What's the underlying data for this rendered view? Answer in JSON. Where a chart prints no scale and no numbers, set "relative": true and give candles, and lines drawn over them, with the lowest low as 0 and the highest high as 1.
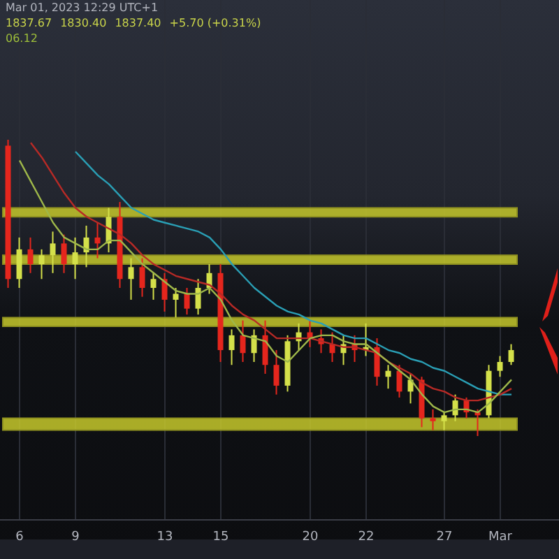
{
  "chart_data": {
    "type": "candlestick",
    "relative": true,
    "grid": "x",
    "categories": [
      null,
      "6",
      null,
      null,
      null,
      null,
      "9",
      null,
      null,
      null,
      null,
      null,
      null,
      null,
      "13",
      null,
      null,
      null,
      null,
      "15",
      null,
      null,
      null,
      null,
      null,
      null,
      null,
      "20",
      null,
      null,
      null,
      null,
      "22",
      null,
      null,
      null,
      null,
      null,
      null,
      "27",
      null,
      null,
      null,
      null,
      "Mar",
      null
    ],
    "ohlc": [
      [
        0.98,
        1.0,
        0.5,
        0.53
      ],
      [
        0.53,
        0.67,
        0.5,
        0.63
      ],
      [
        0.63,
        0.67,
        0.55,
        0.58
      ],
      [
        0.58,
        0.63,
        0.53,
        0.61
      ],
      [
        0.61,
        0.69,
        0.55,
        0.65
      ],
      [
        0.65,
        0.68,
        0.55,
        0.58
      ],
      [
        0.58,
        0.67,
        0.53,
        0.62
      ],
      [
        0.62,
        0.71,
        0.57,
        0.67
      ],
      [
        0.67,
        0.72,
        0.6,
        0.65
      ],
      [
        0.65,
        0.77,
        0.62,
        0.74
      ],
      [
        0.74,
        0.79,
        0.5,
        0.53
      ],
      [
        0.53,
        0.6,
        0.46,
        0.57
      ],
      [
        0.57,
        0.6,
        0.47,
        0.5
      ],
      [
        0.5,
        0.55,
        0.46,
        0.53
      ],
      [
        0.53,
        0.55,
        0.42,
        0.46
      ],
      [
        0.46,
        0.5,
        0.4,
        0.48
      ],
      [
        0.48,
        0.5,
        0.41,
        0.43
      ],
      [
        0.43,
        0.53,
        0.41,
        0.5
      ],
      [
        0.5,
        0.58,
        0.48,
        0.55
      ],
      [
        0.55,
        0.58,
        0.25,
        0.29
      ],
      [
        0.29,
        0.36,
        0.24,
        0.34
      ],
      [
        0.34,
        0.39,
        0.25,
        0.28
      ],
      [
        0.28,
        0.36,
        0.25,
        0.34
      ],
      [
        0.34,
        0.39,
        0.21,
        0.24
      ],
      [
        0.24,
        0.29,
        0.14,
        0.17
      ],
      [
        0.17,
        0.34,
        0.15,
        0.32
      ],
      [
        0.32,
        0.38,
        0.29,
        0.35
      ],
      [
        0.35,
        0.39,
        0.3,
        0.33
      ],
      [
        0.33,
        0.36,
        0.28,
        0.31
      ],
      [
        0.31,
        0.35,
        0.25,
        0.28
      ],
      [
        0.28,
        0.34,
        0.24,
        0.31
      ],
      [
        0.31,
        0.34,
        0.25,
        0.29
      ],
      [
        0.29,
        0.38,
        0.27,
        0.3
      ],
      [
        0.3,
        0.33,
        0.17,
        0.2
      ],
      [
        0.2,
        0.24,
        0.16,
        0.22
      ],
      [
        0.22,
        0.24,
        0.13,
        0.15
      ],
      [
        0.15,
        0.21,
        0.11,
        0.19
      ],
      [
        0.19,
        0.2,
        0.03,
        0.06
      ],
      [
        0.06,
        0.09,
        0.02,
        0.05
      ],
      [
        0.05,
        0.08,
        0.02,
        0.07
      ],
      [
        0.07,
        0.14,
        0.05,
        0.12
      ],
      [
        0.12,
        0.13,
        0.06,
        0.08
      ],
      [
        0.08,
        0.09,
        0,
        0.07
      ],
      [
        0.07,
        0.24,
        0.06,
        0.22
      ],
      [
        0.22,
        0.27,
        0.2,
        0.25
      ],
      [
        0.25,
        0.31,
        0.24,
        0.29
      ]
    ],
    "colors": [
      "#e5261d",
      "#d4e04a",
      "#e5261d",
      "#d4e04a",
      "#d4e04a",
      "#e5261d",
      "#d4e04a",
      "#d4e04a",
      "#e5261d",
      "#d4e04a",
      "#e5261d",
      "#d4e04a",
      "#e5261d",
      "#d4e04a",
      "#e5261d",
      "#d4e04a",
      "#e5261d",
      "#d4e04a",
      "#d4e04a",
      "#e5261d",
      "#d4e04a",
      "#e5261d",
      "#d4e04a",
      "#e5261d",
      "#e5261d",
      "#d4e04a",
      "#d4e04a",
      "#e5261d",
      "#e5261d",
      "#e5261d",
      "#d4e04a",
      "#e5261d",
      "#d4e04a",
      "#e5261d",
      "#d4e04a",
      "#e5261d",
      "#d4e04a",
      "#e5261d",
      "#e5261d",
      "#d4e04a",
      "#d4e04a",
      "#e5261d",
      "#e5261d",
      "#d4e04a",
      "#d4e04a",
      "#d4e04a"
    ],
    "series": [
      {
        "type": "line",
        "color": "#2a9fb5",
        "values": [
          null,
          null,
          null,
          null,
          null,
          null,
          0.96,
          0.92,
          0.88,
          0.85,
          0.81,
          0.77,
          0.75,
          0.73,
          0.72,
          0.71,
          0.7,
          0.69,
          0.67,
          0.63,
          0.58,
          0.54,
          0.5,
          0.47,
          0.44,
          0.42,
          0.41,
          0.39,
          0.38,
          0.36,
          0.34,
          0.33,
          0.33,
          0.31,
          0.29,
          0.28,
          0.26,
          0.25,
          0.23,
          0.22,
          0.2,
          0.18,
          0.16,
          0.15,
          0.14,
          0.14
        ]
      },
      {
        "type": "line",
        "color": "#b82a26",
        "values": [
          null,
          null,
          0.99,
          0.94,
          0.88,
          0.82,
          0.77,
          0.74,
          0.72,
          0.7,
          0.68,
          0.65,
          0.61,
          0.58,
          0.56,
          0.54,
          0.53,
          0.52,
          0.51,
          0.48,
          0.44,
          0.41,
          0.39,
          0.36,
          0.33,
          0.33,
          0.33,
          0.33,
          0.32,
          0.31,
          0.3,
          0.3,
          0.29,
          0.28,
          0.25,
          0.23,
          0.21,
          0.18,
          0.16,
          0.15,
          0.13,
          0.12,
          0.12,
          0.13,
          0.14,
          0.16
        ]
      },
      {
        "type": "line",
        "color": "#9fb84a",
        "values": [
          null,
          0.93,
          0.86,
          0.79,
          0.72,
          0.67,
          0.65,
          0.63,
          0.63,
          0.66,
          0.66,
          0.62,
          0.58,
          0.55,
          0.52,
          0.49,
          0.48,
          0.48,
          0.5,
          0.46,
          0.39,
          0.34,
          0.33,
          0.32,
          0.27,
          0.25,
          0.29,
          0.33,
          0.34,
          0.34,
          0.32,
          0.31,
          0.31,
          0.28,
          0.25,
          0.22,
          0.19,
          0.14,
          0.1,
          0.08,
          0.09,
          0.09,
          0.08,
          0.11,
          0.15,
          0.19
        ]
      }
    ],
    "bands": [
      {
        "axis": "y",
        "from": 0.74,
        "to": 0.77,
        "color": "#c5c82c"
      },
      {
        "axis": "y",
        "from": 0.58,
        "to": 0.61,
        "color": "#c5c82c"
      },
      {
        "axis": "y",
        "from": 0.37,
        "to": 0.4,
        "color": "#c5c82c"
      },
      {
        "axis": "y",
        "from": 0.02,
        "to": 0.06,
        "color": "#c5c82c"
      }
    ],
    "annotations": [
      "Mar 01, 2023 12:29 UTC+1",
      "1837.67",
      "1830.40",
      "1837.40",
      "+5.70 (+0.31%)",
      "06.12"
    ]
  }
}
